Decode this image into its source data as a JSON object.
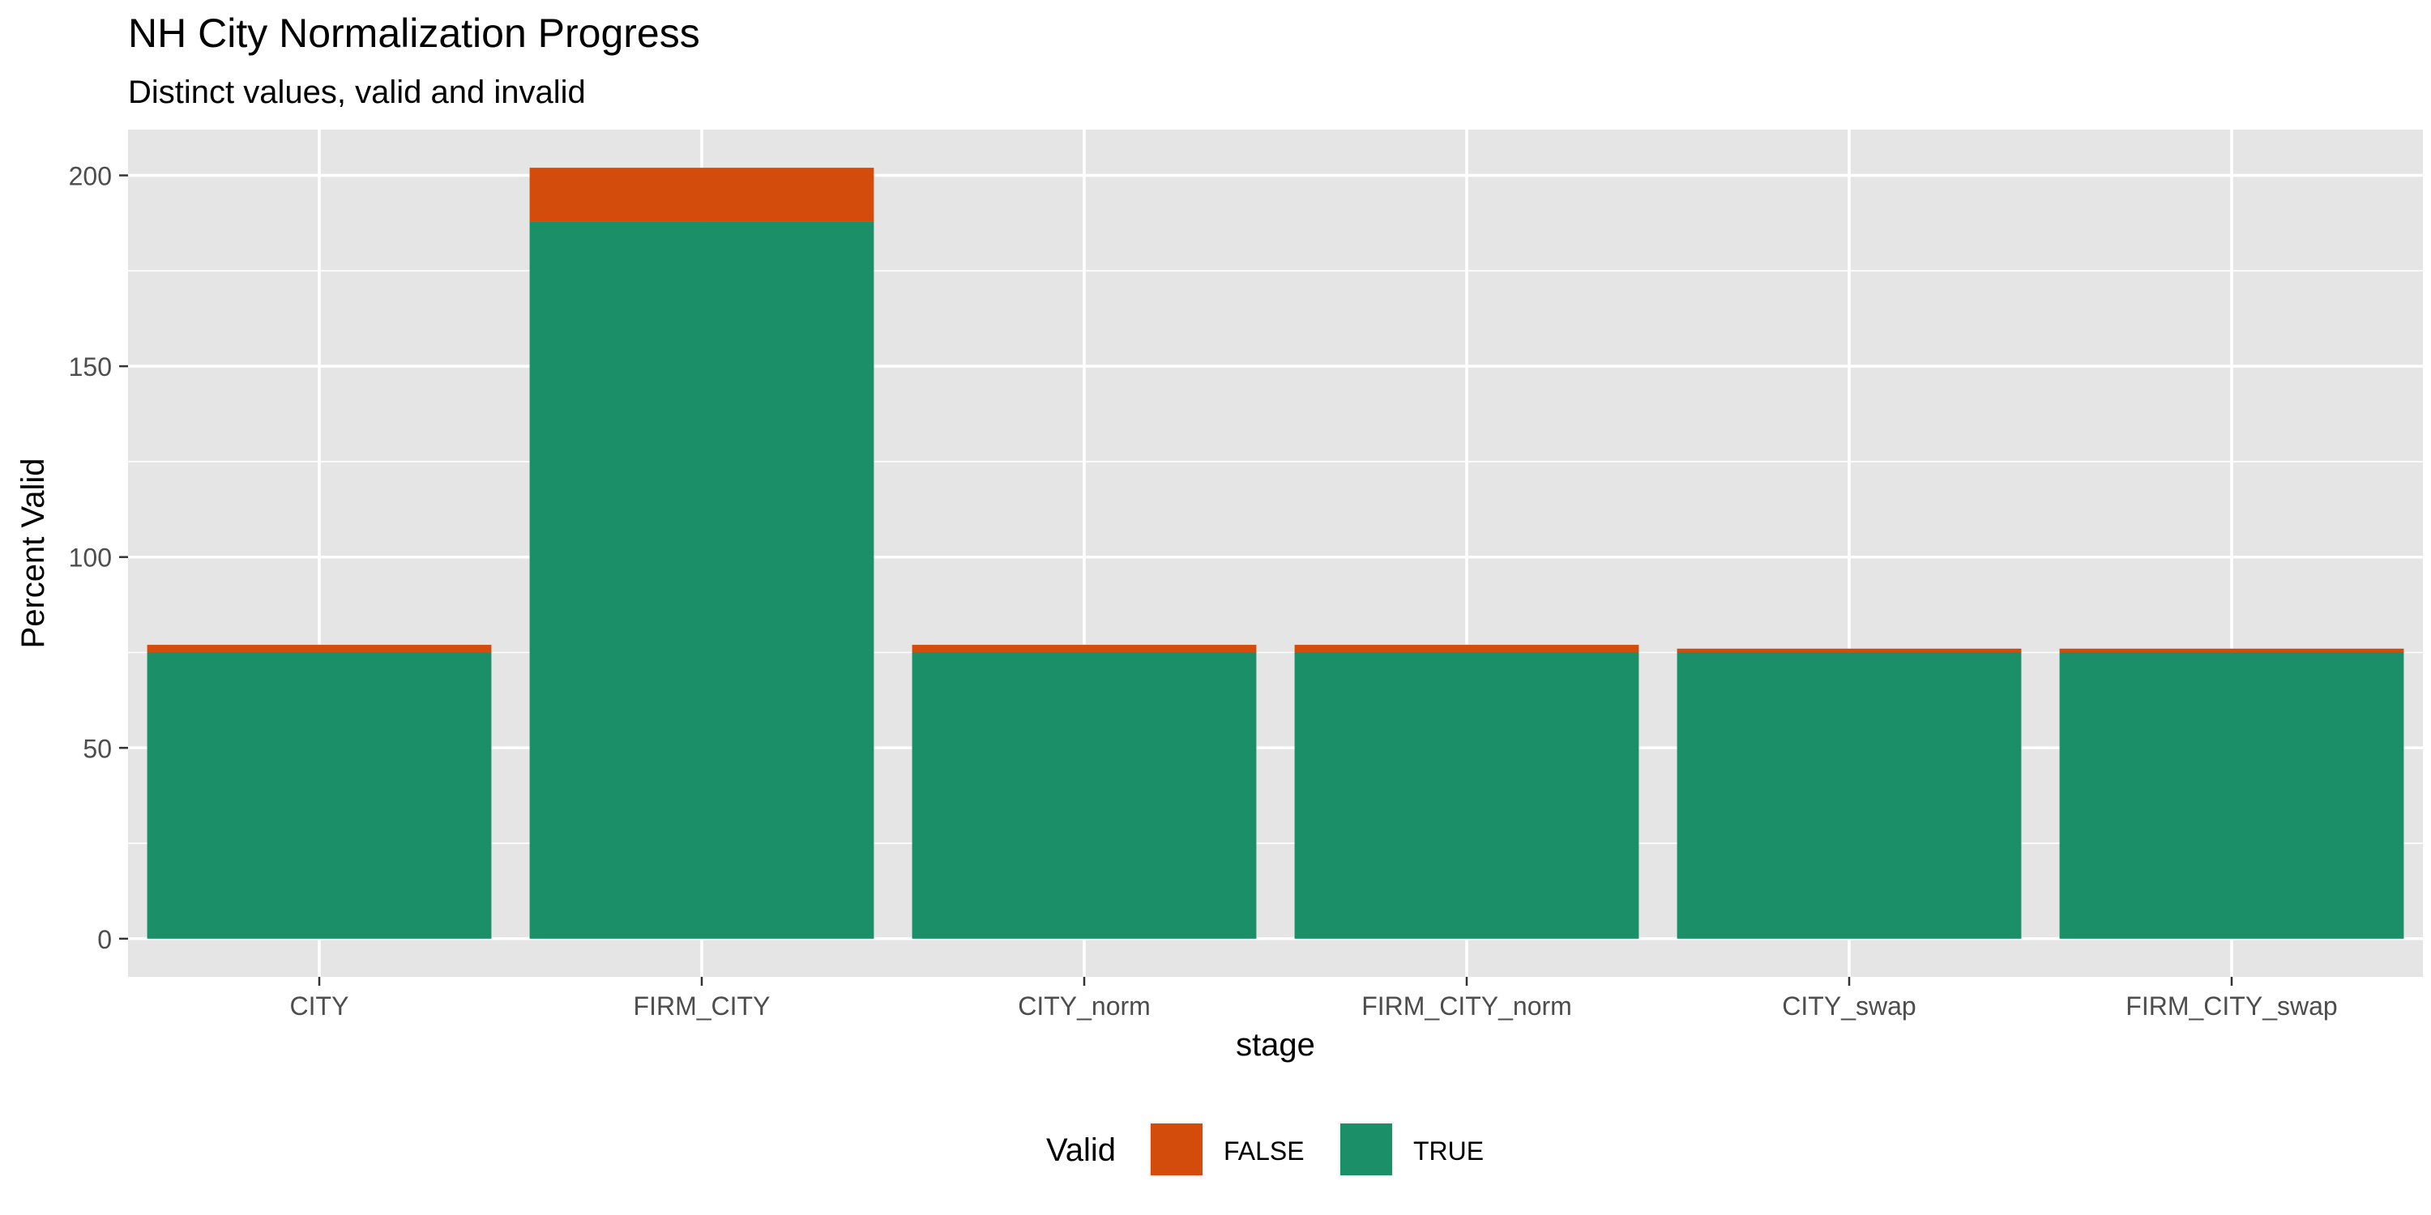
{
  "chart_data": {
    "type": "bar",
    "stacked": true,
    "title": "NH City Normalization Progress",
    "subtitle": "Distinct values, valid and invalid",
    "xlabel": "stage",
    "ylabel": "Percent Valid",
    "categories": [
      "CITY",
      "FIRM_CITY",
      "CITY_norm",
      "FIRM_CITY_norm",
      "CITY_swap",
      "FIRM_CITY_swap"
    ],
    "series": [
      {
        "name": "TRUE",
        "color": "#1b9068",
        "values": [
          75,
          188,
          75,
          75,
          75,
          75
        ]
      },
      {
        "name": "FALSE",
        "color": "#d34c0b",
        "values": [
          2,
          14,
          2,
          2,
          1,
          1
        ]
      }
    ],
    "ylim": [
      -10,
      212
    ],
    "yticks": [
      0,
      50,
      100,
      150,
      200
    ],
    "ytick_labels": [
      "0",
      "50",
      "100",
      "150",
      "200"
    ],
    "grid": true,
    "panel_background": "#e5e5e5",
    "legend": {
      "title": "Valid",
      "position": "bottom",
      "entries": [
        {
          "label": "FALSE",
          "color": "#d34c0b"
        },
        {
          "label": "TRUE",
          "color": "#1b9068"
        }
      ]
    }
  }
}
